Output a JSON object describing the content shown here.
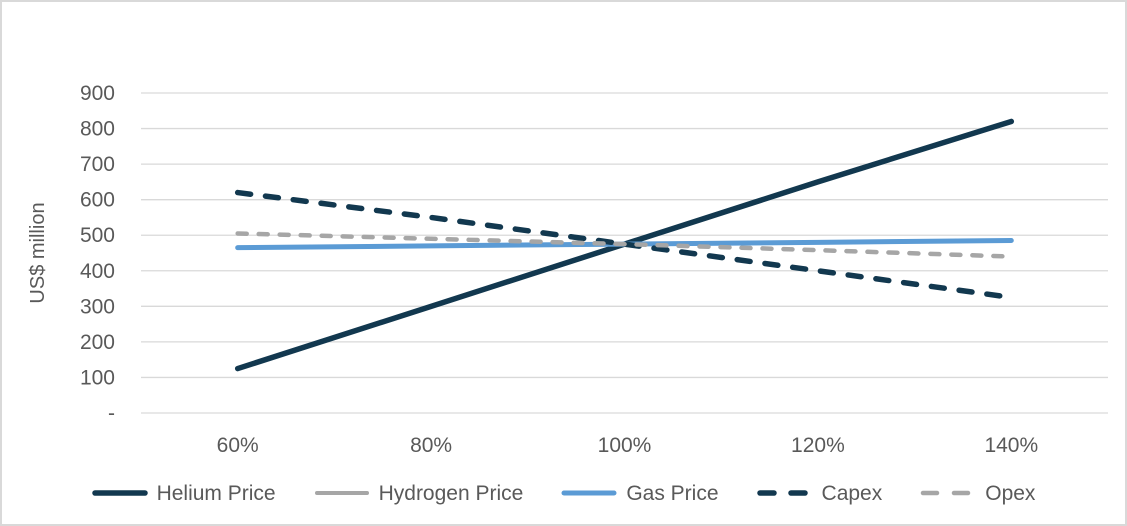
{
  "chart_data": {
    "type": "line",
    "title": "",
    "xlabel": "",
    "ylabel": "US$ million",
    "categories": [
      "60%",
      "80%",
      "100%",
      "120%",
      "140%"
    ],
    "series": [
      {
        "name": "Helium Price",
        "values": [
          125,
          300,
          475,
          650,
          820
        ],
        "color": "#12384F",
        "style": "solid",
        "width": 5.5
      },
      {
        "name": "Hydrogen Price",
        "values": [
          465,
          470,
          475,
          480,
          485
        ],
        "color": "#A6A6A6",
        "style": "solid",
        "width": 4
      },
      {
        "name": "Gas Price",
        "values": [
          465,
          470,
          475,
          480,
          485
        ],
        "color": "#5B9BD5",
        "style": "solid",
        "width": 5
      },
      {
        "name": "Capex",
        "values": [
          620,
          550,
          475,
          400,
          325
        ],
        "color": "#12384F",
        "style": "dashed",
        "width": 5.5,
        "dash": "13 15"
      },
      {
        "name": "Opex",
        "values": [
          505,
          490,
          475,
          458,
          440
        ],
        "color": "#A6A6A6",
        "style": "dashed",
        "width": 4.5,
        "dash": "9 12"
      }
    ],
    "ylim": [
      0,
      900
    ],
    "ytick_step": 100,
    "ytick_labels": [
      "-",
      "100",
      "200",
      "300",
      "400",
      "500",
      "600",
      "700",
      "800",
      "900"
    ],
    "grid": true,
    "legend_position": "bottom",
    "colors": {
      "gridline": "#D9D9D9",
      "axis_text": "#595959",
      "frame_border": "#D9D9D9",
      "background": "#FFFFFF"
    }
  }
}
